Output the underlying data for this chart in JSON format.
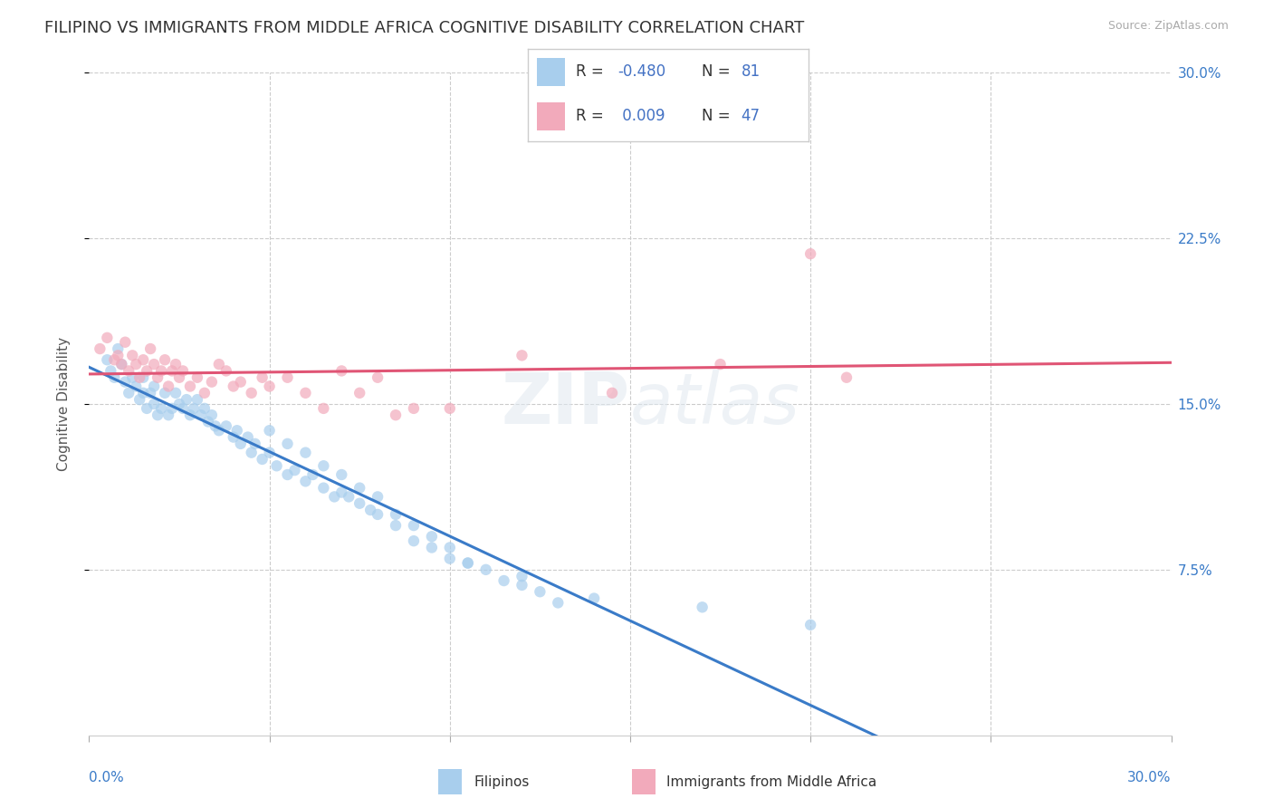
{
  "title": "FILIPINO VS IMMIGRANTS FROM MIDDLE AFRICA COGNITIVE DISABILITY CORRELATION CHART",
  "source": "Source: ZipAtlas.com",
  "ylabel": "Cognitive Disability",
  "ytick_values": [
    0.075,
    0.15,
    0.225,
    0.3
  ],
  "ytick_labels": [
    "7.5%",
    "15.0%",
    "22.5%",
    "30.0%"
  ],
  "xlim": [
    0.0,
    0.3
  ],
  "ylim": [
    0.0,
    0.3
  ],
  "color_filipino": "#A8CEED",
  "color_immigrant": "#F2AABB",
  "line_color_filipino": "#3A7BC8",
  "line_color_immigrant": "#E05575",
  "background_color": "#FFFFFF",
  "title_fontsize": 13,
  "axis_label_fontsize": 11,
  "tick_fontsize": 11,
  "legend_r1_label": "R = ",
  "legend_r1_val": "-0.480",
  "legend_n1_label": "N = ",
  "legend_n1_val": "81",
  "legend_r2_label": "R = ",
  "legend_r2_val": " 0.009",
  "legend_n2_label": "N = ",
  "legend_n2_val": "47",
  "legend_text_color": "#333333",
  "legend_val_color": "#4472C4",
  "filipinos_x": [
    0.005,
    0.006,
    0.007,
    0.008,
    0.009,
    0.01,
    0.011,
    0.012,
    0.013,
    0.014,
    0.015,
    0.015,
    0.016,
    0.017,
    0.018,
    0.018,
    0.019,
    0.02,
    0.021,
    0.022,
    0.023,
    0.024,
    0.025,
    0.026,
    0.027,
    0.028,
    0.029,
    0.03,
    0.031,
    0.032,
    0.033,
    0.034,
    0.035,
    0.036,
    0.038,
    0.04,
    0.041,
    0.042,
    0.044,
    0.045,
    0.046,
    0.048,
    0.05,
    0.052,
    0.055,
    0.057,
    0.06,
    0.062,
    0.065,
    0.068,
    0.07,
    0.072,
    0.075,
    0.078,
    0.08,
    0.085,
    0.09,
    0.095,
    0.1,
    0.105,
    0.11,
    0.115,
    0.12,
    0.125,
    0.13,
    0.05,
    0.055,
    0.06,
    0.065,
    0.07,
    0.075,
    0.08,
    0.085,
    0.09,
    0.095,
    0.1,
    0.105,
    0.12,
    0.14,
    0.17,
    0.2
  ],
  "filipinos_y": [
    0.17,
    0.165,
    0.162,
    0.175,
    0.168,
    0.16,
    0.155,
    0.162,
    0.158,
    0.152,
    0.155,
    0.162,
    0.148,
    0.155,
    0.15,
    0.158,
    0.145,
    0.148,
    0.155,
    0.145,
    0.148,
    0.155,
    0.15,
    0.148,
    0.152,
    0.145,
    0.148,
    0.152,
    0.145,
    0.148,
    0.142,
    0.145,
    0.14,
    0.138,
    0.14,
    0.135,
    0.138,
    0.132,
    0.135,
    0.128,
    0.132,
    0.125,
    0.128,
    0.122,
    0.118,
    0.12,
    0.115,
    0.118,
    0.112,
    0.108,
    0.11,
    0.108,
    0.105,
    0.102,
    0.1,
    0.095,
    0.088,
    0.085,
    0.08,
    0.078,
    0.075,
    0.07,
    0.068,
    0.065,
    0.06,
    0.138,
    0.132,
    0.128,
    0.122,
    0.118,
    0.112,
    0.108,
    0.1,
    0.095,
    0.09,
    0.085,
    0.078,
    0.072,
    0.062,
    0.058,
    0.05
  ],
  "immigrants_x": [
    0.003,
    0.005,
    0.007,
    0.008,
    0.009,
    0.01,
    0.011,
    0.012,
    0.013,
    0.014,
    0.015,
    0.016,
    0.017,
    0.018,
    0.019,
    0.02,
    0.021,
    0.022,
    0.023,
    0.024,
    0.025,
    0.026,
    0.028,
    0.03,
    0.032,
    0.034,
    0.036,
    0.038,
    0.04,
    0.042,
    0.045,
    0.048,
    0.05,
    0.055,
    0.06,
    0.065,
    0.07,
    0.075,
    0.08,
    0.085,
    0.09,
    0.1,
    0.12,
    0.145,
    0.175,
    0.2,
    0.21
  ],
  "immigrants_y": [
    0.175,
    0.18,
    0.17,
    0.172,
    0.168,
    0.178,
    0.165,
    0.172,
    0.168,
    0.162,
    0.17,
    0.165,
    0.175,
    0.168,
    0.162,
    0.165,
    0.17,
    0.158,
    0.165,
    0.168,
    0.162,
    0.165,
    0.158,
    0.162,
    0.155,
    0.16,
    0.168,
    0.165,
    0.158,
    0.16,
    0.155,
    0.162,
    0.158,
    0.162,
    0.155,
    0.148,
    0.165,
    0.155,
    0.162,
    0.145,
    0.148,
    0.148,
    0.172,
    0.155,
    0.168,
    0.218,
    0.162
  ]
}
